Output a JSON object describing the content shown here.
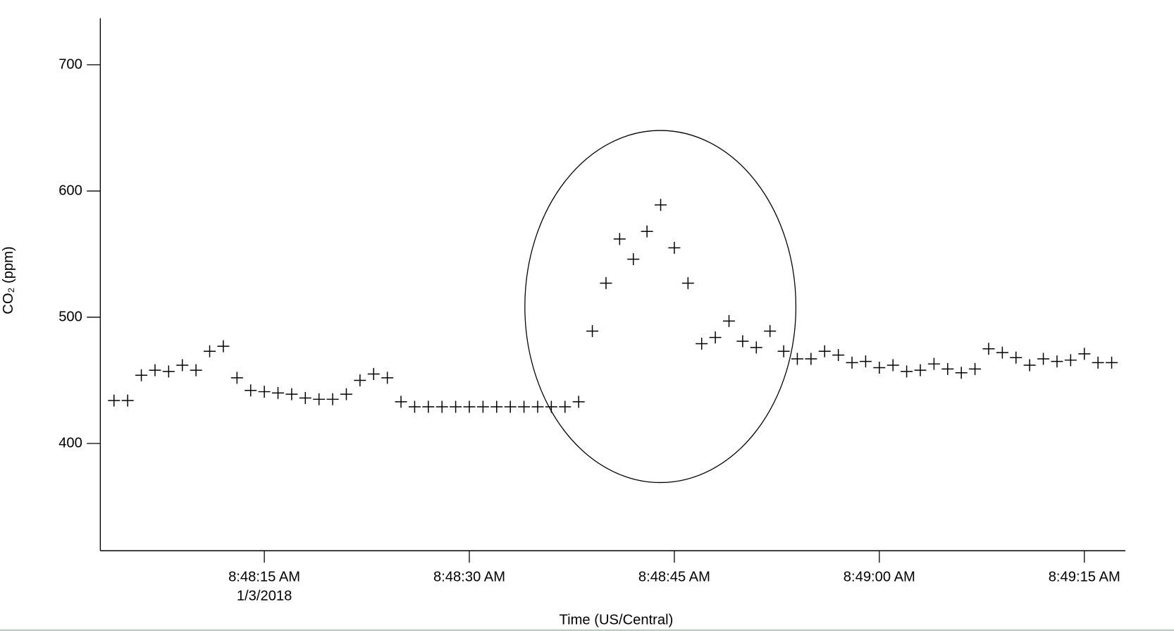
{
  "chart_data": {
    "type": "scatter",
    "color": "#000000",
    "y_label": "CO₂ (ppm)",
    "x_label": "Time (US/Central)",
    "date_label": "1/3/2018",
    "x": [
      "8:48:04 AM",
      "8:48:05 AM",
      "8:48:06 AM",
      "8:48:07 AM",
      "8:48:08 AM",
      "8:48:09 AM",
      "8:48:10 AM",
      "8:48:11 AM",
      "8:48:12 AM",
      "8:48:13 AM",
      "8:48:14 AM",
      "8:48:15 AM",
      "8:48:16 AM",
      "8:48:17 AM",
      "8:48:18 AM",
      "8:48:19 AM",
      "8:48:20 AM",
      "8:48:21 AM",
      "8:48:22 AM",
      "8:48:23 AM",
      "8:48:24 AM",
      "8:48:25 AM",
      "8:48:26 AM",
      "8:48:27 AM",
      "8:48:28 AM",
      "8:48:29 AM",
      "8:48:30 AM",
      "8:48:31 AM",
      "8:48:32 AM",
      "8:48:33 AM",
      "8:48:34 AM",
      "8:48:35 AM",
      "8:48:36 AM",
      "8:48:37 AM",
      "8:48:38 AM",
      "8:48:39 AM",
      "8:48:40 AM",
      "8:48:41 AM",
      "8:48:42 AM",
      "8:48:43 AM",
      "8:48:44 AM",
      "8:48:45 AM",
      "8:48:46 AM",
      "8:48:47 AM",
      "8:48:48 AM",
      "8:48:49 AM",
      "8:48:50 AM",
      "8:48:51 AM",
      "8:48:52 AM",
      "8:48:53 AM",
      "8:48:54 AM",
      "8:48:55 AM",
      "8:48:56 AM",
      "8:48:57 AM",
      "8:48:58 AM",
      "8:48:59 AM",
      "8:49:00 AM",
      "8:49:01 AM",
      "8:49:02 AM",
      "8:49:03 AM",
      "8:49:04 AM",
      "8:49:05 AM",
      "8:49:06 AM",
      "8:49:07 AM",
      "8:49:08 AM",
      "8:49:09 AM",
      "8:49:10 AM",
      "8:49:11 AM",
      "8:49:12 AM",
      "8:49:13 AM",
      "8:49:14 AM",
      "8:49:15 AM",
      "8:49:16 AM",
      "8:49:17 AM"
    ],
    "values": [
      434,
      434,
      454,
      458,
      457,
      462,
      458,
      473,
      477,
      452,
      442,
      441,
      440,
      439,
      436,
      435,
      435,
      439,
      450,
      455,
      452,
      433,
      429,
      429,
      429,
      429,
      429,
      429,
      429,
      429,
      429,
      429,
      429,
      429,
      433,
      489,
      527,
      562,
      546,
      568,
      589,
      555,
      527,
      479,
      484,
      497,
      481,
      476,
      489,
      473,
      467,
      467,
      473,
      470,
      464,
      465,
      460,
      462,
      457,
      458,
      463,
      459,
      456,
      459,
      475,
      472,
      468,
      462,
      467,
      465,
      466,
      471,
      464,
      464
    ],
    "xlim": [
      "8:48:03 AM",
      "8:49:18 AM"
    ],
    "xticks": [
      "8:48:15 AM",
      "8:48:30 AM",
      "8:48:45 AM",
      "8:49:00 AM",
      "8:49:15 AM"
    ],
    "ylim": [
      315,
      737
    ],
    "yticks": [
      400,
      500,
      600,
      700
    ]
  }
}
